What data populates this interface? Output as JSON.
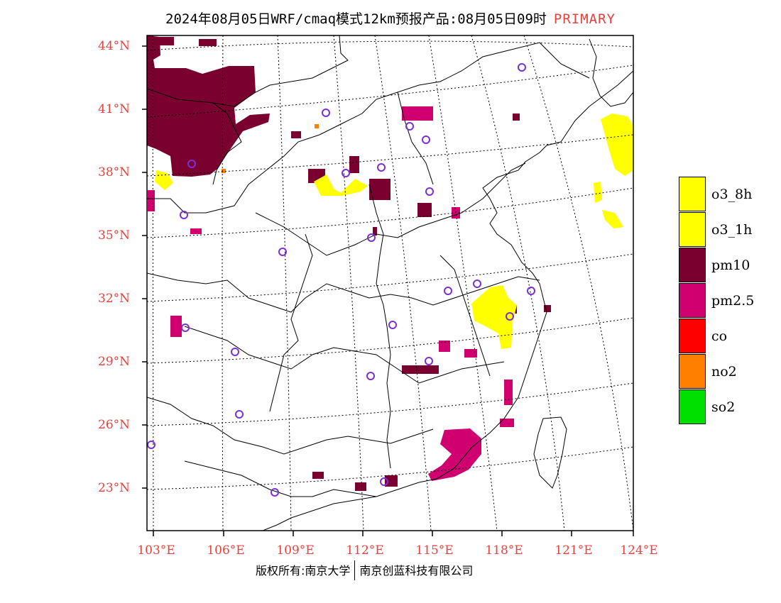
{
  "header": {
    "title": "2024年08月05日WRF/cmaq模式12km预报产品:08月05日09时",
    "mode": "PRIMARY"
  },
  "map": {
    "lat_labels": [
      "44°N",
      "41°N",
      "38°N",
      "35°N",
      "32°N",
      "29°N",
      "26°N",
      "23°N"
    ],
    "lon_labels": [
      "103°E",
      "106°E",
      "109°E",
      "112°E",
      "115°E",
      "118°E",
      "121°E",
      "124°E"
    ],
    "station_marker_color": "#7b2fd6",
    "boundary_color": "#000000"
  },
  "legend": {
    "items": [
      {
        "label": "o3_8h",
        "color": "#ffff00"
      },
      {
        "label": "o3_1h",
        "color": "#ffff00"
      },
      {
        "label": "pm10",
        "color": "#7a0030"
      },
      {
        "label": "pm2.5",
        "color": "#d00070"
      },
      {
        "label": "co",
        "color": "#ff0000"
      },
      {
        "label": "no2",
        "color": "#ff7f00"
      },
      {
        "label": "so2",
        "color": "#00e000"
      }
    ]
  },
  "footer": {
    "left": "版权所有:南京大学",
    "right": "南京创蓝科技有限公司"
  }
}
